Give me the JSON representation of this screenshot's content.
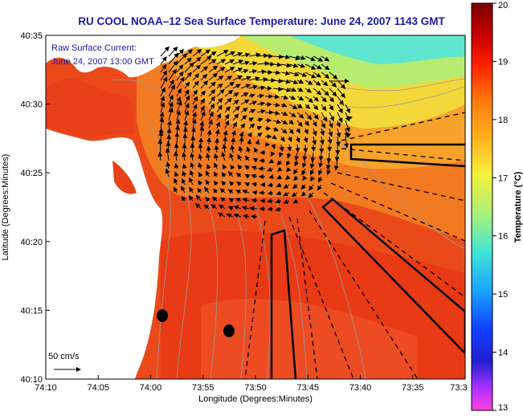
{
  "title": "RU COOL   NOAA–12  Sea Surface Temperature:  June 24, 2007 1143 GMT",
  "overlay": {
    "line1": "Raw Surface Current:",
    "line2": "June 24, 2007 13:00 GMT"
  },
  "axes": {
    "xlabel": "Longitude (Degrees:Minutes)",
    "ylabel": "Latitude (Degrees:Minutes)",
    "xticks": [
      "74:10",
      "74:05",
      "74:00",
      "73:55",
      "73:50",
      "73:45",
      "73:40",
      "73:35",
      "73:3"
    ],
    "yticks": [
      "40:35",
      "40:30",
      "40:25",
      "40:20",
      "40:15",
      "40:10"
    ]
  },
  "scale_arrow": {
    "label": "50 cm/s"
  },
  "colorbar": {
    "label": "Temperature (°C)",
    "min": 13,
    "max": 20,
    "ticks": [
      "20",
      "19",
      "18",
      "17",
      "16",
      "15",
      "14",
      "13"
    ]
  },
  "colors": {
    "land": "#ffffff",
    "warm": "#e8401a",
    "mid": "#f8a020",
    "cool": "#40e0e0",
    "contour": "#9a9a9a",
    "title_text": "#1a1aa8"
  }
}
